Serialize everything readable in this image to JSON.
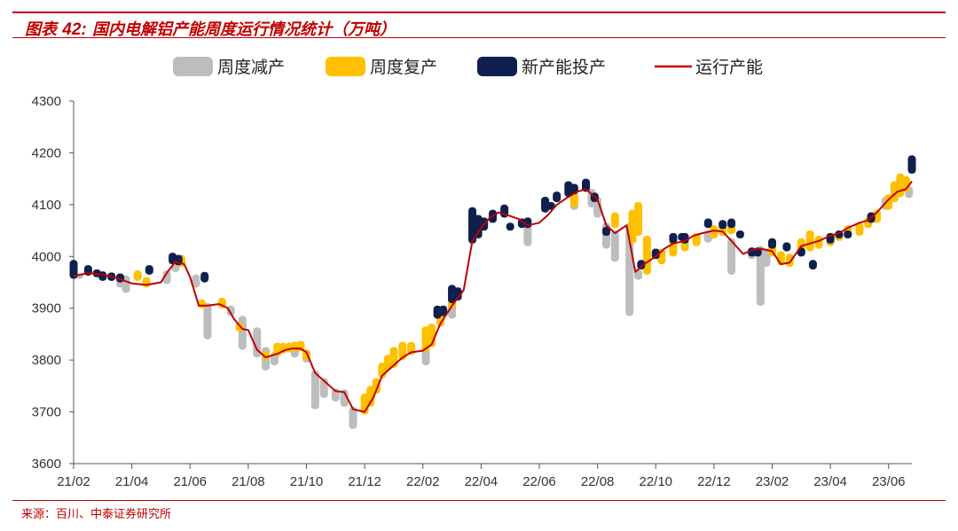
{
  "header": {
    "title_prefix": "图表",
    "title_number": "42:",
    "title_text": "国内电解铝产能周度运行情况统计（万吨）"
  },
  "footer": {
    "source": "来源：百川、中泰证券研究所"
  },
  "colors": {
    "accent": "#c00000",
    "cut": "#bdbdbd",
    "resume": "#ffc000",
    "new": "#0f1f4f",
    "line": "#c00000"
  },
  "chart_data": {
    "type": "line",
    "legend": [
      "周度减产",
      "周度复产",
      "新产能投产",
      "运行产能"
    ],
    "legend_position": "top",
    "ylim": [
      3600,
      4300
    ],
    "yticks": [
      "3600",
      "3700",
      "3800",
      "3900",
      "4000",
      "4100",
      "4200",
      "4300"
    ],
    "xticks": [
      "21/02",
      "21/04",
      "21/06",
      "21/08",
      "21/10",
      "21/12",
      "22/02",
      "22/04",
      "22/06",
      "22/08",
      "22/10",
      "22/12",
      "23/02",
      "23/04",
      "23/06"
    ],
    "grid": false,
    "series": [
      {
        "name": "运行产能",
        "x_month_index": [
          0.0,
          0.5,
          1.0,
          1.5,
          2.0,
          2.5,
          3.0,
          3.2,
          3.5,
          3.8,
          4.0,
          4.3,
          4.6,
          5.0,
          5.3,
          5.5,
          5.8,
          6.0,
          6.3,
          6.6,
          7.0,
          7.3,
          7.5,
          7.8,
          8.0,
          8.3,
          8.6,
          9.0,
          9.3,
          9.6,
          10.0,
          10.3,
          10.6,
          11.0,
          11.3,
          11.6,
          12.0,
          12.3,
          12.6,
          13.0,
          13.4,
          13.7,
          14.0,
          14.3,
          14.6,
          15.0,
          15.3,
          15.6,
          16.0,
          16.3,
          16.6,
          17.0,
          17.3,
          17.6,
          18.0,
          18.3,
          18.6,
          19.0,
          19.3,
          19.6,
          20.0,
          20.3,
          20.6,
          21.0,
          21.3,
          21.6,
          22.0,
          22.3,
          22.6,
          23.0,
          23.3,
          23.6,
          24.0,
          24.3,
          24.6,
          25.0,
          25.3,
          25.6,
          26.0,
          26.3,
          26.6,
          27.0,
          27.3,
          27.6,
          28.0,
          28.3,
          28.6,
          28.8
        ],
        "values": [
          3962,
          3968,
          3965,
          3958,
          3948,
          3945,
          3950,
          3968,
          3990,
          3985,
          3960,
          3905,
          3905,
          3908,
          3900,
          3880,
          3860,
          3858,
          3820,
          3805,
          3812,
          3820,
          3822,
          3822,
          3815,
          3775,
          3760,
          3740,
          3738,
          3705,
          3700,
          3728,
          3770,
          3790,
          3805,
          3815,
          3818,
          3830,
          3870,
          3905,
          3935,
          4030,
          4055,
          4075,
          4085,
          4078,
          4072,
          4060,
          4065,
          4080,
          4100,
          4115,
          4125,
          4130,
          4110,
          4060,
          4045,
          4060,
          3970,
          3985,
          4000,
          4015,
          4025,
          4030,
          4040,
          4045,
          4050,
          4048,
          4030,
          4005,
          4012,
          4015,
          4010,
          3985,
          3988,
          4020,
          4025,
          4030,
          4040,
          4045,
          4055,
          4065,
          4070,
          4085,
          4110,
          4125,
          4130,
          4145
        ]
      }
    ],
    "bars": [
      {
        "name": "周度减产",
        "values_month_index": [
          [
            0.2,
            3962,
            3962
          ],
          [
            1.6,
            3960,
            3945
          ],
          [
            1.8,
            3958,
            3935
          ],
          [
            3.2,
            3968,
            3952
          ],
          [
            3.5,
            3990,
            3975
          ],
          [
            4.2,
            3960,
            3945
          ],
          [
            4.6,
            3905,
            3845
          ],
          [
            5.4,
            3900,
            3890
          ],
          [
            5.8,
            3880,
            3825
          ],
          [
            6.3,
            3858,
            3810
          ],
          [
            6.6,
            3820,
            3785
          ],
          [
            6.9,
            3810,
            3795
          ],
          [
            7.6,
            3822,
            3810
          ],
          [
            8.0,
            3815,
            3800
          ],
          [
            8.3,
            3775,
            3710
          ],
          [
            8.6,
            3760,
            3732
          ],
          [
            9.0,
            3740,
            3725
          ],
          [
            9.3,
            3738,
            3715
          ],
          [
            9.6,
            3705,
            3672
          ],
          [
            12.1,
            3818,
            3795
          ],
          [
            13.0,
            3905,
            3885
          ],
          [
            15.6,
            4060,
            4025
          ],
          [
            17.2,
            4120,
            4095
          ],
          [
            17.8,
            4125,
            4100
          ],
          [
            18.0,
            4110,
            4080
          ],
          [
            18.3,
            4060,
            4020
          ],
          [
            18.6,
            4045,
            3995
          ],
          [
            19.1,
            4060,
            3890
          ],
          [
            19.4,
            3970,
            3960
          ],
          [
            21.8,
            4045,
            4032
          ],
          [
            22.6,
            4030,
            3970
          ],
          [
            23.3,
            4012,
            4000
          ],
          [
            23.6,
            4015,
            3910
          ],
          [
            23.8,
            4010,
            3985
          ],
          [
            27.9,
            4110,
            4095
          ],
          [
            28.3,
            4125,
            4118
          ],
          [
            28.7,
            4130,
            4118
          ]
        ]
      },
      {
        "name": "周度复产",
        "values_month_index": [
          [
            2.2,
            3958,
            3968
          ],
          [
            2.5,
            3945,
            3955
          ],
          [
            3.7,
            3985,
            3998
          ],
          [
            4.4,
            3905,
            3912
          ],
          [
            5.1,
            3905,
            3915
          ],
          [
            5.7,
            3860,
            3868
          ],
          [
            6.6,
            3805,
            3812
          ],
          [
            7.0,
            3812,
            3828
          ],
          [
            7.2,
            3818,
            3828
          ],
          [
            7.4,
            3820,
            3828
          ],
          [
            7.6,
            3822,
            3830
          ],
          [
            7.8,
            3822,
            3832
          ],
          [
            8.0,
            3815,
            3805
          ],
          [
            10.0,
            3700,
            3730
          ],
          [
            10.2,
            3715,
            3745
          ],
          [
            10.4,
            3740,
            3760
          ],
          [
            10.6,
            3770,
            3790
          ],
          [
            10.8,
            3785,
            3805
          ],
          [
            11.0,
            3790,
            3820
          ],
          [
            11.3,
            3805,
            3830
          ],
          [
            11.6,
            3815,
            3830
          ],
          [
            12.1,
            3820,
            3860
          ],
          [
            12.3,
            3830,
            3865
          ],
          [
            12.6,
            3870,
            3890
          ],
          [
            13.0,
            3905,
            3920
          ],
          [
            17.2,
            4100,
            4115
          ],
          [
            18.6,
            4060,
            4080
          ],
          [
            19.2,
            4030,
            4085
          ],
          [
            19.4,
            4045,
            4100
          ],
          [
            19.7,
            3970,
            4035
          ],
          [
            20.2,
            3990,
            4010
          ],
          [
            20.6,
            4005,
            4025
          ],
          [
            21.0,
            4015,
            4035
          ],
          [
            21.4,
            4025,
            4040
          ],
          [
            22.0,
            4040,
            4055
          ],
          [
            22.3,
            4045,
            4060
          ],
          [
            22.6,
            4048,
            4060
          ],
          [
            24.0,
            4005,
            4020
          ],
          [
            24.3,
            3988,
            4005
          ],
          [
            24.6,
            3985,
            4000
          ],
          [
            25.0,
            4010,
            4030
          ],
          [
            25.3,
            4015,
            4045
          ],
          [
            25.6,
            4020,
            4035
          ],
          [
            26.0,
            4025,
            4040
          ],
          [
            26.3,
            4035,
            4045
          ],
          [
            26.6,
            4040,
            4055
          ],
          [
            27.0,
            4045,
            4060
          ],
          [
            27.3,
            4060,
            4070
          ],
          [
            27.6,
            4070,
            4085
          ],
          [
            28.0,
            4095,
            4115
          ],
          [
            28.2,
            4110,
            4140
          ],
          [
            28.4,
            4120,
            4155
          ],
          [
            28.6,
            4130,
            4150
          ]
        ]
      },
      {
        "name": "新产能投产",
        "values_month_index": [
          [
            0.0,
            3962,
            3988
          ],
          [
            0.5,
            3968,
            3978
          ],
          [
            0.8,
            3965,
            3970
          ],
          [
            1.0,
            3958,
            3966
          ],
          [
            1.3,
            3958,
            3964
          ],
          [
            1.6,
            3955,
            3962
          ],
          [
            2.6,
            3970,
            3978
          ],
          [
            3.4,
            3990,
            4002
          ],
          [
            3.6,
            3988,
            3998
          ],
          [
            4.5,
            3955,
            3965
          ],
          [
            12.5,
            3885,
            3900
          ],
          [
            12.7,
            3890,
            3900
          ],
          [
            13.0,
            3915,
            3940
          ],
          [
            13.2,
            3920,
            3935
          ],
          [
            13.7,
            4030,
            4090
          ],
          [
            13.9,
            4040,
            4075
          ],
          [
            14.1,
            4055,
            4070
          ],
          [
            14.4,
            4070,
            4085
          ],
          [
            14.8,
            4080,
            4095
          ],
          [
            15.0,
            4055,
            4060
          ],
          [
            15.4,
            4060,
            4068
          ],
          [
            15.6,
            4060,
            4070
          ],
          [
            16.2,
            4090,
            4110
          ],
          [
            16.4,
            4095,
            4100
          ],
          [
            16.6,
            4110,
            4120
          ],
          [
            17.0,
            4120,
            4140
          ],
          [
            17.2,
            4125,
            4135
          ],
          [
            17.6,
            4130,
            4145
          ],
          [
            17.9,
            4110,
            4118
          ],
          [
            18.3,
            4045,
            4052
          ],
          [
            19.5,
            3980,
            3988
          ],
          [
            20.0,
            4000,
            4010
          ],
          [
            20.6,
            4030,
            4040
          ],
          [
            20.9,
            4035,
            4040
          ],
          [
            21.0,
            4030,
            4040
          ],
          [
            21.8,
            4060,
            4068
          ],
          [
            22.3,
            4058,
            4065
          ],
          [
            22.6,
            4060,
            4068
          ],
          [
            22.9,
            4040,
            4045
          ],
          [
            23.3,
            4005,
            4012
          ],
          [
            23.5,
            4005,
            4012
          ],
          [
            24.0,
            4020,
            4030
          ],
          [
            24.5,
            4015,
            4022
          ],
          [
            25.0,
            4005,
            4012
          ],
          [
            25.4,
            3980,
            3988
          ],
          [
            26.0,
            4030,
            4040
          ],
          [
            26.3,
            4040,
            4045
          ],
          [
            26.6,
            4040,
            4045
          ],
          [
            27.4,
            4070,
            4080
          ],
          [
            28.8,
            4165,
            4190
          ]
        ]
      }
    ]
  }
}
